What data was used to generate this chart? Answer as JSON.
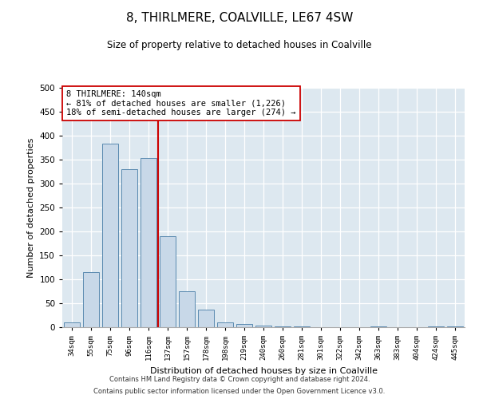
{
  "title": "8, THIRLMERE, COALVILLE, LE67 4SW",
  "subtitle": "Size of property relative to detached houses in Coalville",
  "xlabel": "Distribution of detached houses by size in Coalville",
  "ylabel": "Number of detached properties",
  "annotation_line1": "8 THIRLMERE: 140sqm",
  "annotation_line2": "← 81% of detached houses are smaller (1,226)",
  "annotation_line3": "18% of semi-detached houses are larger (274) →",
  "categories": [
    "34sqm",
    "55sqm",
    "75sqm",
    "96sqm",
    "116sqm",
    "137sqm",
    "157sqm",
    "178sqm",
    "198sqm",
    "219sqm",
    "240sqm",
    "260sqm",
    "281sqm",
    "301sqm",
    "322sqm",
    "342sqm",
    "363sqm",
    "383sqm",
    "404sqm",
    "424sqm",
    "445sqm"
  ],
  "bar_heights": [
    10,
    115,
    383,
    330,
    353,
    190,
    75,
    37,
    10,
    6,
    3,
    2,
    1,
    0,
    0,
    0,
    2,
    0,
    0,
    2,
    2
  ],
  "bar_color": "#c8d8e8",
  "bar_edge_color": "#5a8ab0",
  "red_line_color": "#cc0000",
  "background_color": "#dde8f0",
  "grid_color": "#ffffff",
  "ylim": [
    0,
    500
  ],
  "yticks": [
    0,
    50,
    100,
    150,
    200,
    250,
    300,
    350,
    400,
    450,
    500
  ],
  "footer_line1": "Contains HM Land Registry data © Crown copyright and database right 2024.",
  "footer_line2": "Contains public sector information licensed under the Open Government Licence v3.0."
}
